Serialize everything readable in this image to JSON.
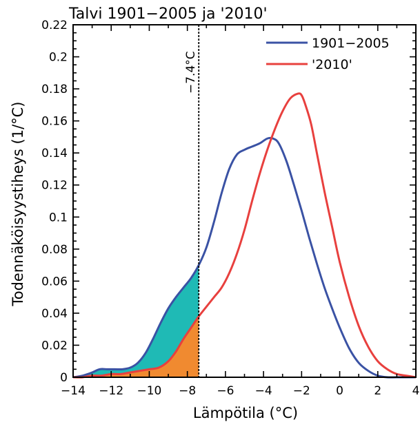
{
  "chart_data": {
    "type": "line",
    "title": "Talvi 1901−2005 ja '2010'",
    "xlabel": "Lämpötila (°C)",
    "ylabel": "Todennäköisyystiheys (1/°C)",
    "xlim": [
      -14,
      4
    ],
    "ylim": [
      0,
      0.22
    ],
    "xticks": [
      -14,
      -12,
      -10,
      -8,
      -6,
      -4,
      -2,
      0,
      2,
      4
    ],
    "xtick_labels": [
      "−14",
      "−12",
      "−10",
      "−8",
      "−6",
      "−4",
      "−2",
      "0",
      "2",
      "4"
    ],
    "yticks": [
      0,
      0.02,
      0.04,
      0.06,
      0.08,
      0.1,
      0.12,
      0.14,
      0.16,
      0.18,
      0.2,
      0.22
    ],
    "ytick_labels": [
      "0",
      "0.02",
      "0.04",
      "0.06",
      "0.08",
      "0.1",
      "0.12",
      "0.14",
      "0.16",
      "0.18",
      "0.2",
      "0.22"
    ],
    "threshold": {
      "x": -7.4,
      "label": "−7.4°C"
    },
    "legend_position": "top-right",
    "grid": false,
    "series": [
      {
        "name": "1901−2005",
        "color": "#3a52a4",
        "fill_color": "#1fbab5",
        "x": [
          -14,
          -13.5,
          -13,
          -12.6,
          -12.2,
          -11.8,
          -11.4,
          -11,
          -10.6,
          -10.2,
          -9.8,
          -9.4,
          -9,
          -8.6,
          -8.2,
          -7.8,
          -7.4,
          -7,
          -6.6,
          -6.2,
          -5.8,
          -5.4,
          -5,
          -4.6,
          -4.2,
          -3.8,
          -3.5,
          -3.2,
          -2.8,
          -2.4,
          -2,
          -1.6,
          -1.2,
          -0.8,
          -0.4,
          0,
          0.5,
          1,
          1.5,
          2,
          2.5,
          3,
          4
        ],
        "y": [
          0,
          0.001,
          0.003,
          0.005,
          0.005,
          0.005,
          0.005,
          0.006,
          0.009,
          0.015,
          0.024,
          0.034,
          0.043,
          0.05,
          0.056,
          0.062,
          0.07,
          0.081,
          0.097,
          0.115,
          0.13,
          0.139,
          0.142,
          0.144,
          0.146,
          0.149,
          0.149,
          0.146,
          0.135,
          0.12,
          0.104,
          0.087,
          0.071,
          0.056,
          0.043,
          0.031,
          0.018,
          0.009,
          0.004,
          0.001,
          0,
          0,
          0
        ]
      },
      {
        "name": "'2010'",
        "color": "#e8403e",
        "fill_color": "#f08a30",
        "x": [
          -14,
          -13.5,
          -13,
          -12.5,
          -12,
          -11.5,
          -11,
          -10.5,
          -10,
          -9.5,
          -9,
          -8.6,
          -8.2,
          -7.8,
          -7.4,
          -7,
          -6.6,
          -6.2,
          -5.8,
          -5.4,
          -5,
          -4.6,
          -4.2,
          -3.8,
          -3.4,
          -3,
          -2.6,
          -2.2,
          -2,
          -1.8,
          -1.5,
          -1.2,
          -0.8,
          -0.4,
          0,
          0.5,
          1,
          1.5,
          2,
          2.5,
          3,
          3.5,
          4
        ],
        "y": [
          0,
          0,
          0.001,
          0.001,
          0.002,
          0.002,
          0.003,
          0.004,
          0.005,
          0.006,
          0.01,
          0.016,
          0.024,
          0.031,
          0.038,
          0.044,
          0.05,
          0.056,
          0.065,
          0.077,
          0.092,
          0.11,
          0.127,
          0.142,
          0.155,
          0.166,
          0.174,
          0.177,
          0.176,
          0.17,
          0.158,
          0.14,
          0.116,
          0.094,
          0.072,
          0.05,
          0.032,
          0.019,
          0.01,
          0.005,
          0.002,
          0.001,
          0
        ]
      }
    ]
  }
}
